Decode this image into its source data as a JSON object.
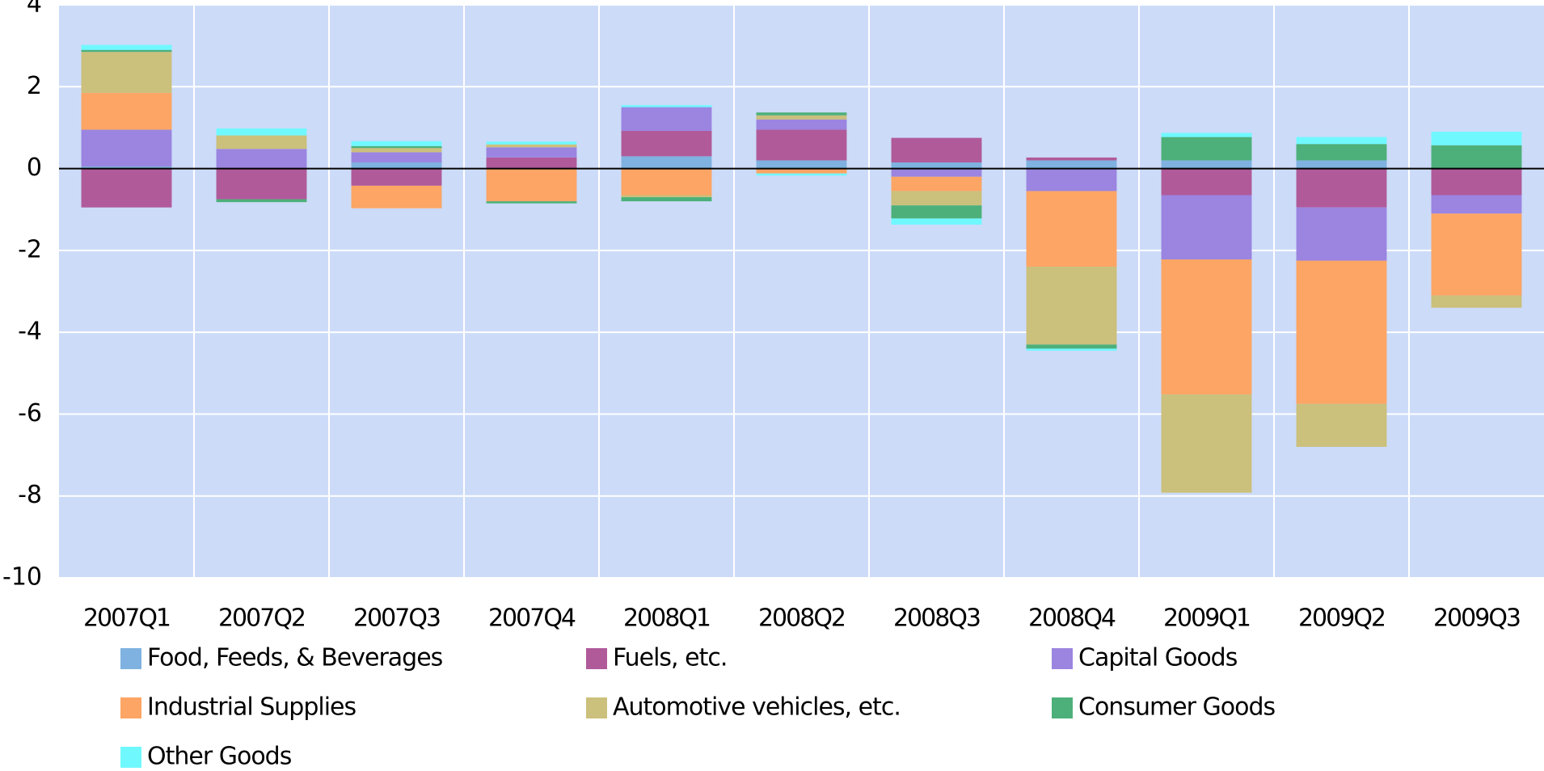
{
  "chart_data": {
    "type": "bar",
    "stacked": true,
    "categories": [
      "2007Q1",
      "2007Q2",
      "2007Q3",
      "2007Q4",
      "2008Q1",
      "2008Q2",
      "2008Q3",
      "2008Q4",
      "2009Q1",
      "2009Q2",
      "2009Q3"
    ],
    "series": [
      {
        "name": "Food, Feeds, & Beverages",
        "color": "#7fb2e0",
        "values": [
          0.05,
          0,
          0.15,
          0,
          0.3,
          0.2,
          0.15,
          0.2,
          0.2,
          0.2,
          0
        ]
      },
      {
        "name": "Fuels, etc.",
        "color": "#b05a9a",
        "values": [
          -0.95,
          -0.75,
          -0.42,
          0.27,
          0.62,
          0.75,
          0.6,
          0.07,
          -0.65,
          -0.95,
          -0.65
        ]
      },
      {
        "name": "Capital Goods",
        "color": "#9b85e0",
        "values": [
          0.9,
          0.48,
          0.25,
          0.25,
          0.58,
          0.25,
          -0.2,
          -0.55,
          -1.57,
          -1.3,
          -0.45
        ]
      },
      {
        "name": "Industrial Supplies",
        "color": "#fca565",
        "values": [
          0.9,
          0,
          -0.55,
          -0.8,
          -0.65,
          -0.12,
          -0.35,
          -1.85,
          -3.3,
          -3.5,
          -2.0
        ]
      },
      {
        "name": "Automotive vehicles, etc.",
        "color": "#cbc07c",
        "values": [
          1.0,
          0.33,
          0.1,
          0.07,
          -0.05,
          0.1,
          -0.35,
          -1.9,
          -2.4,
          -1.05,
          -0.3
        ]
      },
      {
        "name": "Consumer Goods",
        "color": "#4db07a",
        "values": [
          0.05,
          -0.07,
          0.05,
          -0.05,
          -0.1,
          0.07,
          -0.32,
          -0.1,
          0.57,
          0.4,
          0.57
        ]
      },
      {
        "name": "Other Goods",
        "color": "#70f8ff",
        "values": [
          0.12,
          0.17,
          0.12,
          0.07,
          0.05,
          -0.05,
          -0.15,
          -0.05,
          0.1,
          0.17,
          0.33
        ]
      }
    ],
    "ylim": [
      -10,
      4
    ],
    "yticks": [
      -10,
      -8,
      -6,
      -4,
      -2,
      0,
      2,
      4
    ],
    "grid": true
  }
}
